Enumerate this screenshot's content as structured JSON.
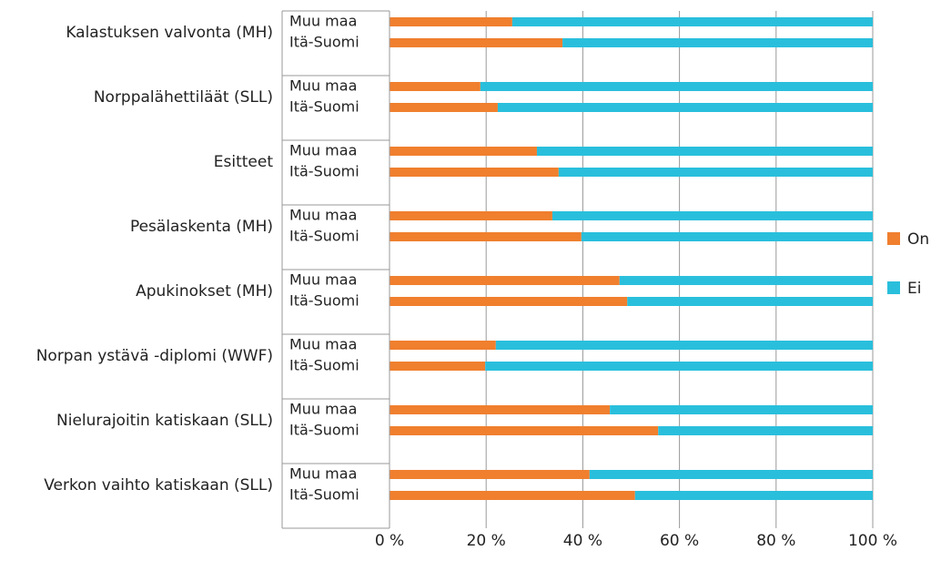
{
  "chart_data": {
    "type": "stacked-barh",
    "groups": [
      "Kalastuksen valvonta (MH)",
      "Norppalähettiläät (SLL)",
      "Esitteet",
      "Pesälaskenta (MH)",
      "Apukinokset (MH)",
      "Norpan ystävä -diplomi (WWF)",
      "Nielurajoitin katiskaan (SLL)",
      "Verkon vaihto katiskaan (SLL)"
    ],
    "categories": [
      "Muu maa",
      "Itä-Suomi",
      "Muu maa",
      "Itä-Suomi",
      "Muu maa",
      "Itä-Suomi",
      "Muu maa",
      "Itä-Suomi",
      "Muu maa",
      "Itä-Suomi",
      "Muu maa",
      "Itä-Suomi",
      "Muu maa",
      "Itä-Suomi",
      "Muu maa",
      "Itä-Suomi"
    ],
    "series": [
      {
        "name": "On",
        "color": "#f07f2e",
        "values": [
          25.4,
          35.8,
          18.8,
          22.4,
          30.5,
          35.0,
          33.7,
          39.7,
          47.6,
          49.2,
          22.0,
          19.8,
          45.6,
          55.6,
          41.4,
          50.8
        ]
      },
      {
        "name": "Ei",
        "color": "#29bfdc",
        "values": [
          74.6,
          64.2,
          81.2,
          77.6,
          69.5,
          65.0,
          66.3,
          60.3,
          52.4,
          50.8,
          78.0,
          80.2,
          54.4,
          44.4,
          58.6,
          49.2
        ]
      }
    ],
    "xlim": [
      0,
      100
    ],
    "xticks": [
      {
        "value": 0,
        "label": "0 %"
      },
      {
        "value": 20,
        "label": "20 %"
      },
      {
        "value": 40,
        "label": "40 %"
      },
      {
        "value": 60,
        "label": "60 %"
      },
      {
        "value": 80,
        "label": "80 %"
      },
      {
        "value": 100,
        "label": "100 %"
      }
    ],
    "grid": true,
    "legend": "right"
  }
}
